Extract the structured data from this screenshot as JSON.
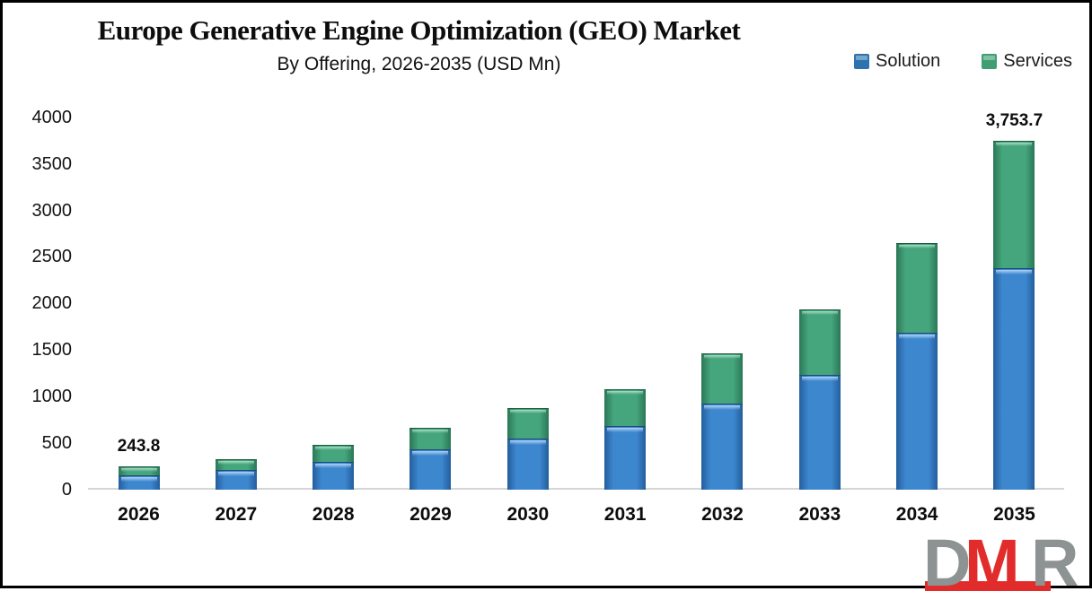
{
  "header": {
    "title": "Europe Generative Engine Optimization (GEO) Market",
    "subtitle": "By Offering, 2026-2035 (USD Mn)"
  },
  "legend": [
    {
      "label": "Solution",
      "color": "#2d73b0"
    },
    {
      "label": "Services",
      "color": "#3f9e74"
    }
  ],
  "chart_data": {
    "type": "bar",
    "stacked": true,
    "title": "Europe Generative Engine Optimization (GEO) Market",
    "subtitle": "By Offering, 2026-2035 (USD Mn)",
    "categories": [
      "2026",
      "2027",
      "2028",
      "2029",
      "2030",
      "2031",
      "2032",
      "2033",
      "2034",
      "2035"
    ],
    "series": [
      {
        "name": "Solution",
        "color": "#3d87cf",
        "values": [
          150,
          205,
          290,
          425,
          550,
          685,
          920,
          1235,
          1680,
          2375
        ]
      },
      {
        "name": "Services",
        "color": "#45a57c",
        "values": [
          93.8,
          115,
          185,
          240,
          325,
          395,
          545,
          700,
          970,
          1378.7
        ]
      }
    ],
    "totals": [
      243.8,
      320,
      475,
      665,
      875,
      1080,
      1465,
      1935,
      2650,
      3753.7
    ],
    "annotations": [
      {
        "category": "2026",
        "label": "243.8"
      },
      {
        "category": "2035",
        "label": "3,753.7"
      }
    ],
    "xlabel": "",
    "ylabel": "",
    "y_ticks": [
      0,
      500,
      1000,
      1500,
      2000,
      2500,
      3000,
      3500,
      4000
    ],
    "ylim": [
      0,
      4000
    ],
    "grid": false,
    "legend_position": "top-right"
  },
  "logo": {
    "letters": [
      "D",
      "M",
      "R"
    ],
    "gray": "#8d9292",
    "red": "#e22b2b"
  }
}
